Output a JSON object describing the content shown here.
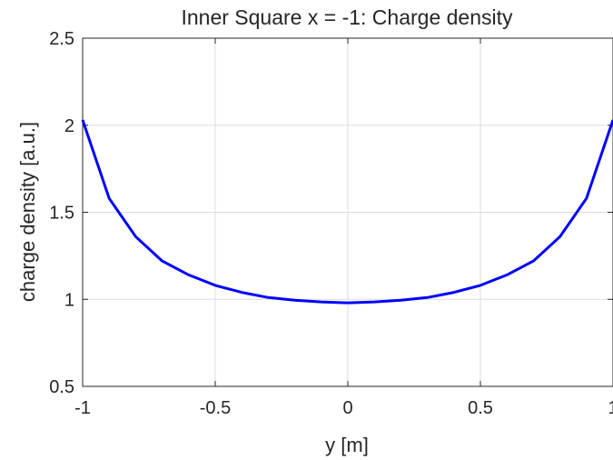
{
  "chart_data": {
    "type": "line",
    "title": "Inner Square x = -1: Charge density",
    "xlabel": "y  [m]",
    "ylabel": "charge density  [a.u.]",
    "xlim": [
      -1,
      1
    ],
    "ylim": [
      0.5,
      2.5
    ],
    "x_ticks": [
      -1,
      -0.5,
      0,
      0.5,
      1
    ],
    "x_tick_labels": [
      "-1",
      "-0.5",
      "0",
      "0.5",
      "1"
    ],
    "y_ticks": [
      0.5,
      1,
      1.5,
      2,
      2.5
    ],
    "y_tick_labels": [
      "0.5",
      "1",
      "1.5",
      "2",
      "2.5"
    ],
    "grid": true,
    "series": [
      {
        "color": "#0000ff",
        "x": [
          -1,
          -0.9,
          -0.8,
          -0.7,
          -0.6,
          -0.5,
          -0.4,
          -0.3,
          -0.2,
          -0.1,
          0,
          0.1,
          0.2,
          0.3,
          0.4,
          0.5,
          0.6,
          0.7,
          0.8,
          0.9,
          1
        ],
        "y": [
          2.03,
          1.58,
          1.36,
          1.22,
          1.14,
          1.08,
          1.04,
          1.01,
          0.995,
          0.985,
          0.98,
          0.985,
          0.995,
          1.01,
          1.04,
          1.08,
          1.14,
          1.22,
          1.36,
          1.58,
          2.03
        ]
      }
    ]
  }
}
